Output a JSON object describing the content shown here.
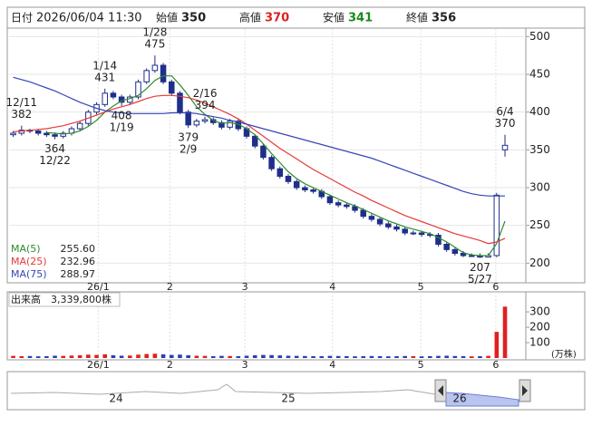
{
  "header": {
    "date_label": "日付",
    "date": "2026/06/04 11:30",
    "open_label": "始値",
    "open": "350",
    "high_label": "高値",
    "high": "370",
    "low_label": "安値",
    "low": "341",
    "close_label": "終値",
    "close": "356"
  },
  "chart_data": [
    {
      "type": "candlestick",
      "xlim": [
        0,
        62
      ],
      "xticks": [
        {
          "value": 10.7,
          "label": "26/1"
        },
        {
          "value": 19.3,
          "label": "2"
        },
        {
          "value": 28.3,
          "label": "3"
        },
        {
          "value": 38.8,
          "label": "4"
        },
        {
          "value": 49.4,
          "label": "5"
        },
        {
          "value": 58.4,
          "label": "6"
        }
      ],
      "ylim": [
        174,
        510
      ],
      "yticks": [
        200,
        250,
        300,
        350,
        400,
        450,
        500
      ],
      "grid": true,
      "up_color": "#ffffff",
      "down_color": "#1e2f8a",
      "edge_color": "#1e2f8a",
      "open": [
        370,
        372,
        376,
        375,
        372,
        370,
        368,
        372,
        378,
        385,
        400,
        410,
        425,
        420,
        413,
        420,
        440,
        455,
        462,
        440,
        425,
        400,
        383,
        388,
        390,
        386,
        380,
        388,
        378,
        368,
        355,
        340,
        325,
        315,
        308,
        300,
        297,
        295,
        288,
        280,
        277,
        275,
        270,
        262,
        258,
        252,
        248,
        245,
        240,
        240,
        238,
        237,
        225,
        218,
        213,
        210,
        210,
        208,
        210,
        350
      ],
      "high": [
        375,
        382,
        378,
        378,
        375,
        373,
        375,
        381,
        388,
        403,
        413,
        431,
        428,
        423,
        423,
        443,
        458,
        475,
        465,
        443,
        428,
        403,
        391,
        394,
        393,
        389,
        391,
        391,
        381,
        371,
        358,
        343,
        328,
        318,
        311,
        303,
        300,
        298,
        291,
        283,
        280,
        278,
        273,
        265,
        261,
        255,
        251,
        248,
        243,
        243,
        241,
        240,
        228,
        221,
        216,
        213,
        213,
        213,
        293,
        370
      ],
      "low": [
        367,
        369,
        372,
        369,
        367,
        364,
        365,
        369,
        375,
        382,
        397,
        407,
        417,
        408,
        410,
        417,
        437,
        452,
        437,
        422,
        397,
        379,
        380,
        385,
        383,
        377,
        377,
        375,
        365,
        352,
        337,
        322,
        312,
        305,
        297,
        294,
        292,
        285,
        277,
        274,
        272,
        267,
        259,
        255,
        249,
        245,
        242,
        237,
        237,
        235,
        234,
        222,
        215,
        210,
        208,
        209,
        207,
        209,
        208,
        341
      ],
      "close": [
        372,
        376,
        375,
        372,
        370,
        368,
        372,
        378,
        385,
        400,
        410,
        425,
        420,
        413,
        420,
        440,
        455,
        462,
        440,
        425,
        400,
        383,
        388,
        390,
        386,
        380,
        388,
        378,
        368,
        355,
        340,
        325,
        315,
        308,
        300,
        297,
        295,
        288,
        280,
        277,
        275,
        270,
        262,
        258,
        252,
        248,
        245,
        240,
        240,
        238,
        237,
        225,
        218,
        213,
        210,
        210,
        208,
        210,
        290,
        356
      ],
      "series": [
        {
          "name": "MA(5)",
          "latest": "255.60",
          "color": "#2e8b2e",
          "values": [
            null,
            null,
            null,
            null,
            373,
            372,
            371,
            372,
            375,
            381,
            389,
            400,
            408,
            415,
            418,
            422,
            431,
            442,
            448,
            448,
            436,
            422,
            407,
            397,
            389,
            385,
            386,
            384,
            378,
            370,
            358,
            345,
            333,
            321,
            312,
            305,
            300,
            295,
            290,
            285,
            280,
            276,
            271,
            266,
            261,
            256,
            252,
            248,
            245,
            242,
            239,
            234,
            228,
            221,
            214,
            211,
            210,
            210,
            226,
            255.6
          ]
        },
        {
          "name": "MA(25)",
          "latest": "232.96",
          "color": "#e53935",
          "values": [
            374,
            375,
            376,
            377,
            378,
            380,
            382,
            385,
            388,
            392,
            396,
            400,
            404,
            407,
            410,
            414,
            418,
            421,
            422,
            422,
            421,
            419,
            416,
            412,
            407,
            402,
            397,
            391,
            384,
            376,
            368,
            360,
            352,
            345,
            338,
            331,
            324,
            318,
            312,
            306,
            300,
            294,
            289,
            283,
            278,
            273,
            268,
            263,
            259,
            255,
            251,
            247,
            243,
            239,
            236,
            233,
            230,
            226,
            228,
            232.96
          ]
        },
        {
          "name": "MA(75)",
          "latest": "288.97",
          "color": "#3546b8",
          "values": [
            446,
            443,
            440,
            436,
            432,
            428,
            423,
            418,
            413,
            409,
            405,
            402,
            400,
            399,
            398,
            398,
            398,
            398,
            398,
            399,
            399,
            399,
            398,
            396,
            394,
            392,
            389,
            387,
            384,
            381,
            378,
            375,
            372,
            369,
            366,
            363,
            360,
            357,
            354,
            351,
            348,
            345,
            342,
            339,
            335,
            331,
            327,
            323,
            319,
            315,
            311,
            307,
            303,
            299,
            295,
            292,
            290,
            289,
            289,
            288.97
          ]
        }
      ],
      "annotations": [
        {
          "date": "12/11",
          "value": 382
        },
        {
          "date": "12/22",
          "value": 364
        },
        {
          "date": "1/14",
          "value": 431
        },
        {
          "date": "1/19",
          "value": 408
        },
        {
          "date": "1/28",
          "value": 475
        },
        {
          "date": "2/16",
          "value": 394
        },
        {
          "date": "2/9",
          "value": 379
        },
        {
          "date": "6/4",
          "value": 370
        },
        {
          "date": "5/27",
          "value": 207
        }
      ]
    },
    {
      "type": "bar",
      "title": "出来高",
      "current": "3,339,800株",
      "unit": "(万株)",
      "up_color": "#e02020",
      "down_color": "#2a3fb0",
      "xlim": [
        0,
        62
      ],
      "xticks": [
        {
          "value": 10.7,
          "label": "26/1"
        },
        {
          "value": 19.3,
          "label": "2"
        },
        {
          "value": 28.3,
          "label": "3"
        },
        {
          "value": 38.8,
          "label": "4"
        },
        {
          "value": 49.4,
          "label": "5"
        },
        {
          "value": 58.4,
          "label": "6"
        }
      ],
      "ylim": [
        0,
        430
      ],
      "yticks": [
        100,
        200,
        300
      ],
      "values": [
        14,
        12,
        13,
        11,
        12,
        15,
        14,
        16,
        18,
        22,
        20,
        24,
        18,
        15,
        16,
        22,
        26,
        28,
        24,
        20,
        22,
        18,
        15,
        14,
        12,
        14,
        13,
        12,
        15,
        18,
        20,
        19,
        17,
        15,
        14,
        13,
        12,
        12,
        14,
        13,
        12,
        11,
        12,
        13,
        12,
        11,
        12,
        13,
        12,
        11,
        12,
        14,
        15,
        13,
        12,
        11,
        12,
        14,
        170,
        334
      ]
    }
  ],
  "navigator": {
    "labels": [
      "24",
      "25",
      "26"
    ]
  }
}
